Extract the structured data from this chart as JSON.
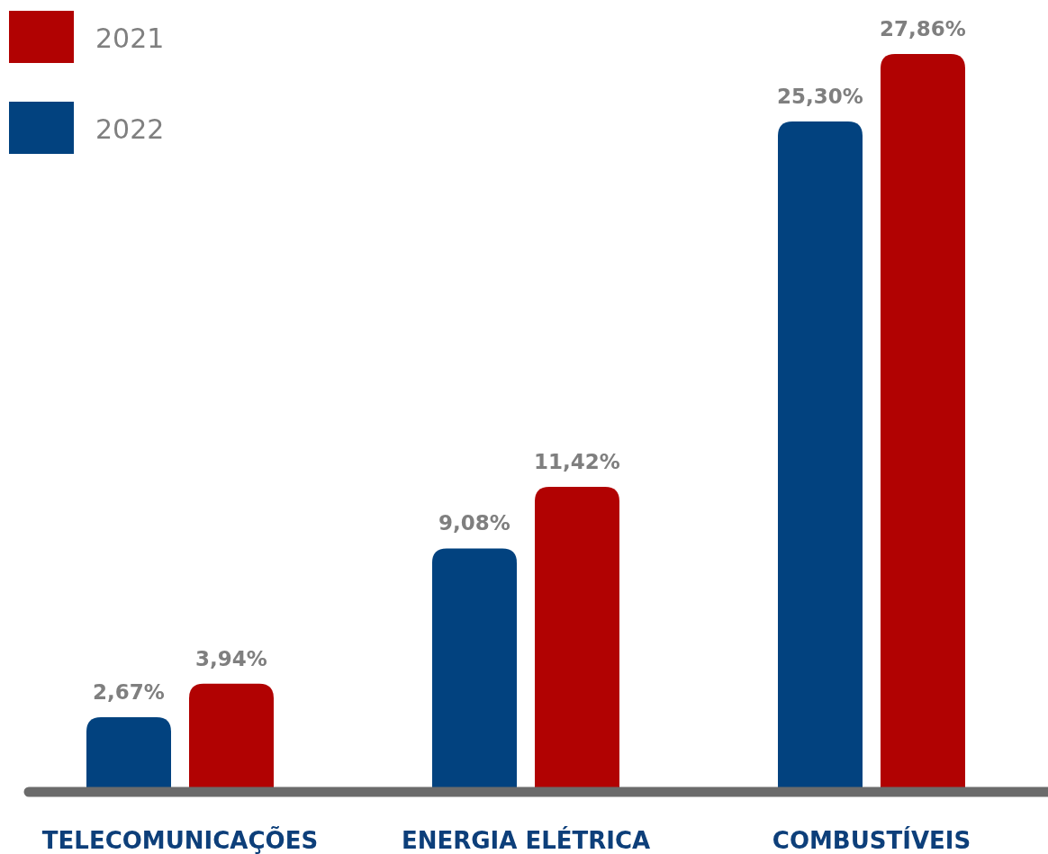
{
  "chart_data": {
    "type": "bar",
    "categories": [
      "TELECOMUNICAÇÕES",
      "ENERGIA ELÉTRICA",
      "COMBUSTÍVEIS"
    ],
    "series": [
      {
        "name": "2022",
        "color": "#02427f",
        "values": [
          2.67,
          9.08,
          25.3
        ],
        "value_labels": [
          "2,67%",
          "9,08%",
          "25,30%"
        ]
      },
      {
        "name": "2021",
        "color": "#b10202",
        "values": [
          3.94,
          11.42,
          27.86
        ],
        "value_labels": [
          "3,94%",
          "11,42%",
          "27,86%"
        ]
      }
    ],
    "legend": "top left",
    "grid": false
  }
}
